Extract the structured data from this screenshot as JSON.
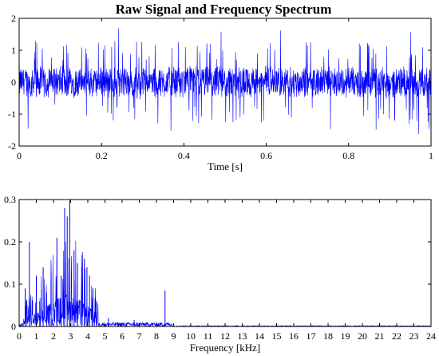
{
  "chart_data": [
    {
      "type": "line",
      "title": "Raw Signal and Frequency Spectrum",
      "xlabel": "Time [s]",
      "ylabel": "",
      "xlim": [
        0,
        1
      ],
      "ylim": [
        -2,
        2
      ],
      "xticks": [
        0,
        0.2,
        0.4,
        0.6,
        0.8,
        1
      ],
      "xtick_labels": [
        "0",
        "0.2",
        "0.4",
        "0.6",
        "0.8",
        "1"
      ],
      "yticks": [
        -2,
        -1,
        0,
        1,
        2
      ],
      "ytick_labels": [
        "-2",
        "-1",
        "0",
        "1",
        "2"
      ],
      "grid": false,
      "color": "#0000ff",
      "envelope": {
        "core_amplitude": 0.55,
        "typical_spike_max": 1.3,
        "peak_max": 1.72,
        "peak_min": -1.65
      }
    },
    {
      "type": "line",
      "title": "",
      "xlabel": "Frequency [kHz]",
      "ylabel": "",
      "xlim": [
        0,
        24
      ],
      "ylim": [
        0,
        0.3
      ],
      "xticks": [
        0,
        1,
        2,
        3,
        4,
        5,
        6,
        7,
        8,
        9,
        10,
        11,
        12,
        13,
        14,
        15,
        16,
        17,
        18,
        19,
        20,
        21,
        22,
        23,
        24
      ],
      "xtick_labels": [
        "0",
        "1",
        "2",
        "3",
        "4",
        "5",
        "6",
        "7",
        "8",
        "9",
        "10",
        "11",
        "12",
        "13",
        "14",
        "15",
        "16",
        "17",
        "18",
        "19",
        "20",
        "21",
        "22",
        "23",
        "24"
      ],
      "yticks": [
        0,
        0.1,
        0.2,
        0.3
      ],
      "ytick_labels": [
        "0",
        "0.1",
        "0.2",
        "0.3"
      ],
      "grid": false,
      "color": "#0000ff",
      "peaks": [
        {
          "x": 0.35,
          "y": 0.09
        },
        {
          "x": 0.6,
          "y": 0.2
        },
        {
          "x": 1.0,
          "y": 0.12
        },
        {
          "x": 1.2,
          "y": 0.06
        },
        {
          "x": 1.4,
          "y": 0.14
        },
        {
          "x": 1.6,
          "y": 0.08
        },
        {
          "x": 1.8,
          "y": 0.05
        },
        {
          "x": 2.2,
          "y": 0.21
        },
        {
          "x": 2.45,
          "y": 0.12
        },
        {
          "x": 2.65,
          "y": 0.28
        },
        {
          "x": 2.8,
          "y": 0.26
        },
        {
          "x": 2.95,
          "y": 0.3
        },
        {
          "x": 3.2,
          "y": 0.18
        },
        {
          "x": 3.4,
          "y": 0.15
        },
        {
          "x": 3.65,
          "y": 0.14
        },
        {
          "x": 3.8,
          "y": 0.16
        },
        {
          "x": 3.95,
          "y": 0.14
        },
        {
          "x": 4.1,
          "y": 0.12
        },
        {
          "x": 4.3,
          "y": 0.09
        },
        {
          "x": 4.5,
          "y": 0.06
        },
        {
          "x": 5.2,
          "y": 0.02
        },
        {
          "x": 6.7,
          "y": 0.015
        },
        {
          "x": 8.5,
          "y": 0.085
        }
      ]
    }
  ]
}
